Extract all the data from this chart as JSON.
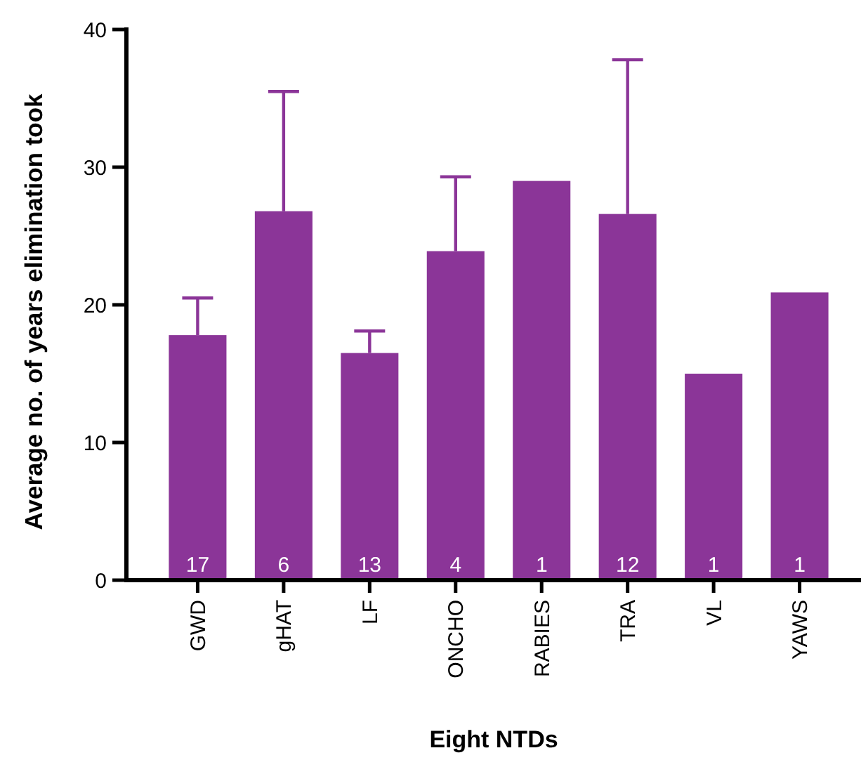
{
  "chart_data": {
    "type": "bar",
    "xlabel": "Eight NTDs",
    "ylabel": "Average no. of years elimination took",
    "categories": [
      "GWD",
      "gHAT",
      "LF",
      "ONCHO",
      "RABIES",
      "TRA",
      "VL",
      "YAWS"
    ],
    "values": [
      17.8,
      26.8,
      16.5,
      23.9,
      29.0,
      26.6,
      15.0,
      20.9
    ],
    "errors": [
      [
        17.8,
        20.5
      ],
      [
        26.8,
        35.5
      ],
      [
        16.5,
        18.1
      ],
      [
        23.9,
        29.3
      ],
      null,
      [
        26.6,
        37.8
      ],
      null,
      null
    ],
    "color": "#8b3598",
    "ylim": [
      0,
      40
    ],
    "yticks": [
      0,
      10,
      20,
      30,
      40
    ],
    "grid": false,
    "annotations": [
      {
        "text": "17",
        "x": "GWD",
        "y": 0
      },
      {
        "text": "6",
        "x": "gHAT",
        "y": 0
      },
      {
        "text": "13",
        "x": "LF",
        "y": 0
      },
      {
        "text": "4",
        "x": "ONCHO",
        "y": 0
      },
      {
        "text": "1",
        "x": "RABIES",
        "y": 0
      },
      {
        "text": "12",
        "x": "TRA",
        "y": 0
      },
      {
        "text": "1",
        "x": "VL",
        "y": 0
      },
      {
        "text": "1",
        "x": "YAWS",
        "y": 0
      }
    ]
  }
}
